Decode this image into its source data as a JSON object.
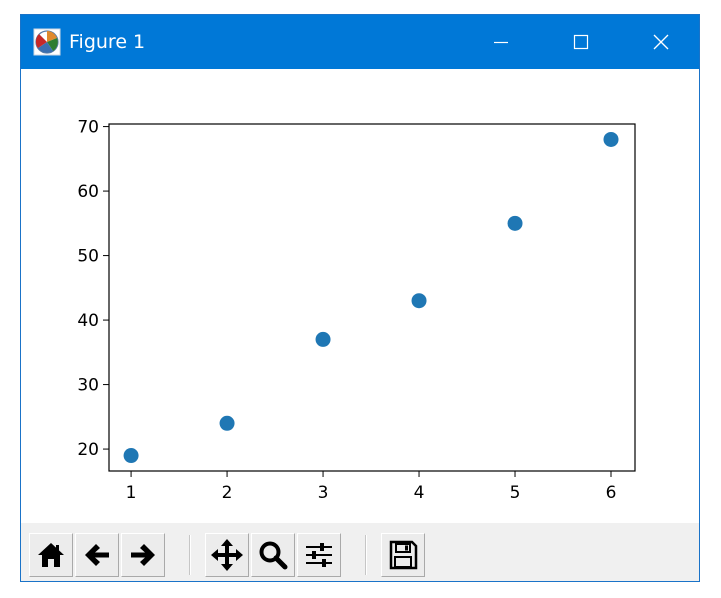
{
  "window": {
    "title": "Figure 1",
    "app_icon": "matplotlib-icon",
    "controls": [
      "minimize-icon",
      "maximize-icon",
      "close-icon"
    ]
  },
  "toolbar": {
    "tools": [
      {
        "name": "home",
        "icon": "home-icon"
      },
      {
        "name": "back",
        "icon": "arrow-left-icon"
      },
      {
        "name": "forward",
        "icon": "arrow-right-icon"
      },
      {
        "name": "pan",
        "icon": "move-icon"
      },
      {
        "name": "zoom",
        "icon": "magnifier-icon"
      },
      {
        "name": "subplots",
        "icon": "sliders-icon"
      },
      {
        "name": "save",
        "icon": "floppy-disk-icon"
      }
    ]
  },
  "chart_data": {
    "type": "scatter",
    "x": [
      1,
      2,
      3,
      4,
      5,
      6
    ],
    "y": [
      19,
      24,
      37,
      43,
      55,
      68
    ],
    "xlim": [
      0.77,
      6.25
    ],
    "ylim": [
      16.6,
      70.4
    ],
    "xticks": [
      1,
      2,
      3,
      4,
      5,
      6
    ],
    "yticks": [
      20,
      30,
      40,
      50,
      60,
      70
    ],
    "title": "",
    "xlabel": "",
    "ylabel": "",
    "grid": false,
    "marker_color": "#1f77b4"
  }
}
